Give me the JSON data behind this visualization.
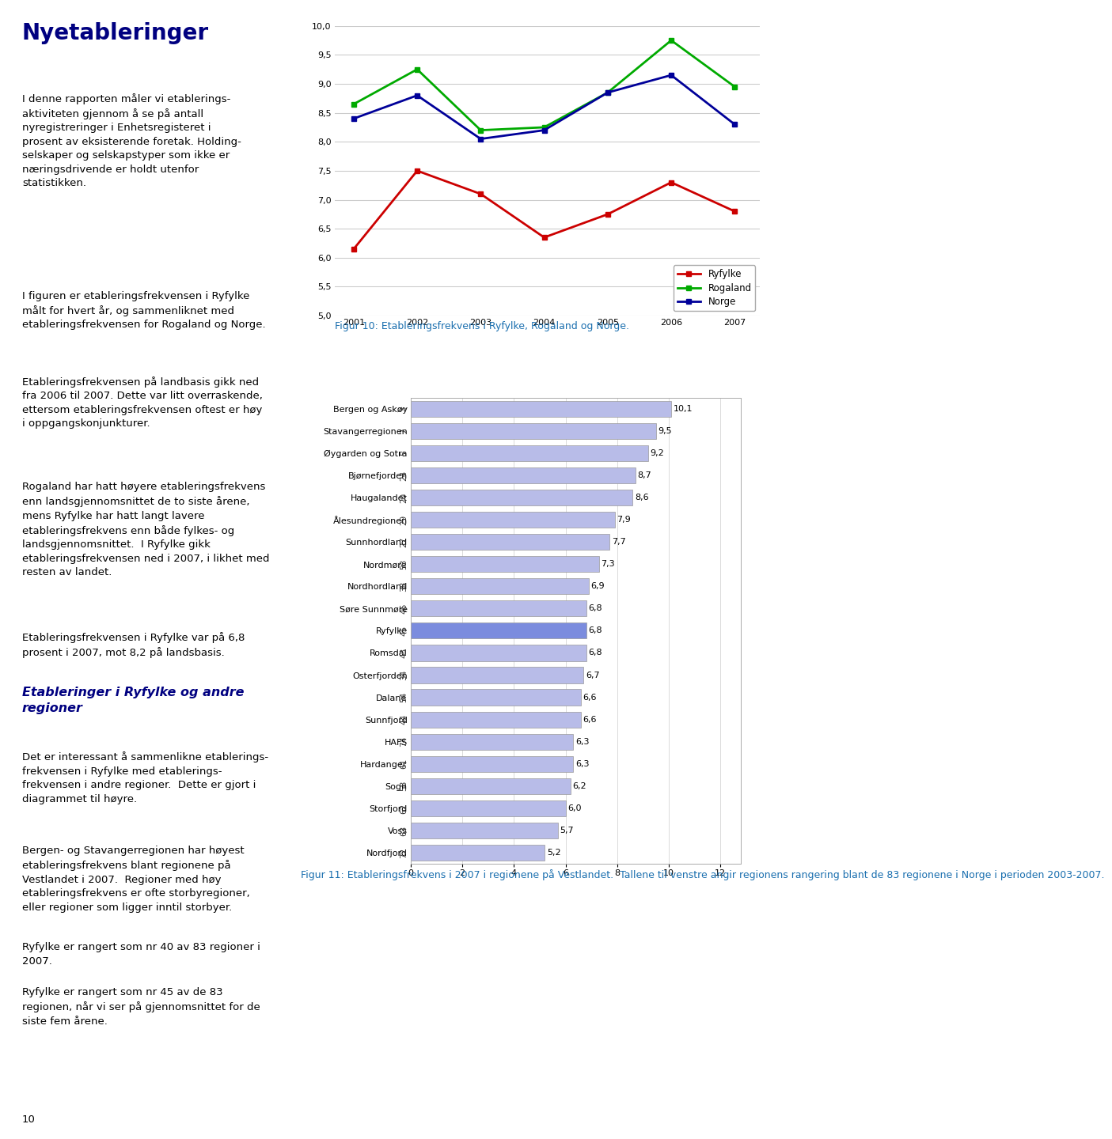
{
  "page_bg": "#ffffff",
  "left_text_color": "#000000",
  "title_color": "#000080",
  "fig_caption_color": "#1a6faf",
  "line_chart": {
    "years": [
      2001,
      2002,
      2003,
      2004,
      2005,
      2006,
      2007
    ],
    "ryfylke": [
      6.15,
      7.5,
      7.1,
      6.35,
      6.75,
      7.3,
      6.8
    ],
    "rogaland": [
      8.65,
      9.25,
      8.2,
      8.25,
      8.85,
      9.75,
      8.95
    ],
    "norge": [
      8.4,
      8.8,
      8.05,
      8.2,
      8.85,
      9.15,
      8.3
    ],
    "ryfylke_color": "#cc0000",
    "rogaland_color": "#00aa00",
    "norge_color": "#000099",
    "ylim": [
      5.0,
      10.0
    ],
    "yticks": [
      5.0,
      5.5,
      6.0,
      6.5,
      7.0,
      7.5,
      8.0,
      8.5,
      9.0,
      9.5,
      10.0
    ],
    "caption": "Figur 10: Etableringsfrekvens i Ryfylke, Rogaland og Norge."
  },
  "bar_chart": {
    "regions": [
      "Bergen og Askøy",
      "Stavangerregionen",
      "Øygarden og Sotra",
      "Bjørnefjorden",
      "Haugalandet",
      "Ålesundregionen",
      "Sunnhordland",
      "Nordmøre",
      "Nordhordland",
      "Søre Sunnmøre",
      "Ryfylke",
      "Romsdal",
      "Osterfjorden",
      "Dalane",
      "Sunnfjord",
      "HAFS",
      "Hardanger",
      "Sogn",
      "Storfjord",
      "Voss",
      "Nordfjord"
    ],
    "ranks": [
      "3",
      "7",
      "5",
      "24",
      "20",
      "29",
      "27",
      "53",
      "38",
      "46",
      "45",
      "43",
      "34",
      "54",
      "44",
      "74",
      "61",
      "58",
      "62",
      "63",
      "72"
    ],
    "values": [
      10.1,
      9.5,
      9.2,
      8.7,
      8.6,
      7.9,
      7.7,
      7.3,
      6.9,
      6.8,
      6.8,
      6.8,
      6.7,
      6.6,
      6.6,
      6.3,
      6.3,
      6.2,
      6.0,
      5.7,
      5.2
    ],
    "bar_color_default": "#b8bce8",
    "bar_color_highlight": "#7b8cde",
    "highlight_index": 10,
    "caption": "Figur 11: Etableringsfrekvens i 2007 i regionene på Vestlandet.  Tallene til venstre angir regionens rangering blant de 83 regionene i Norge i perioden 2003-2007."
  }
}
